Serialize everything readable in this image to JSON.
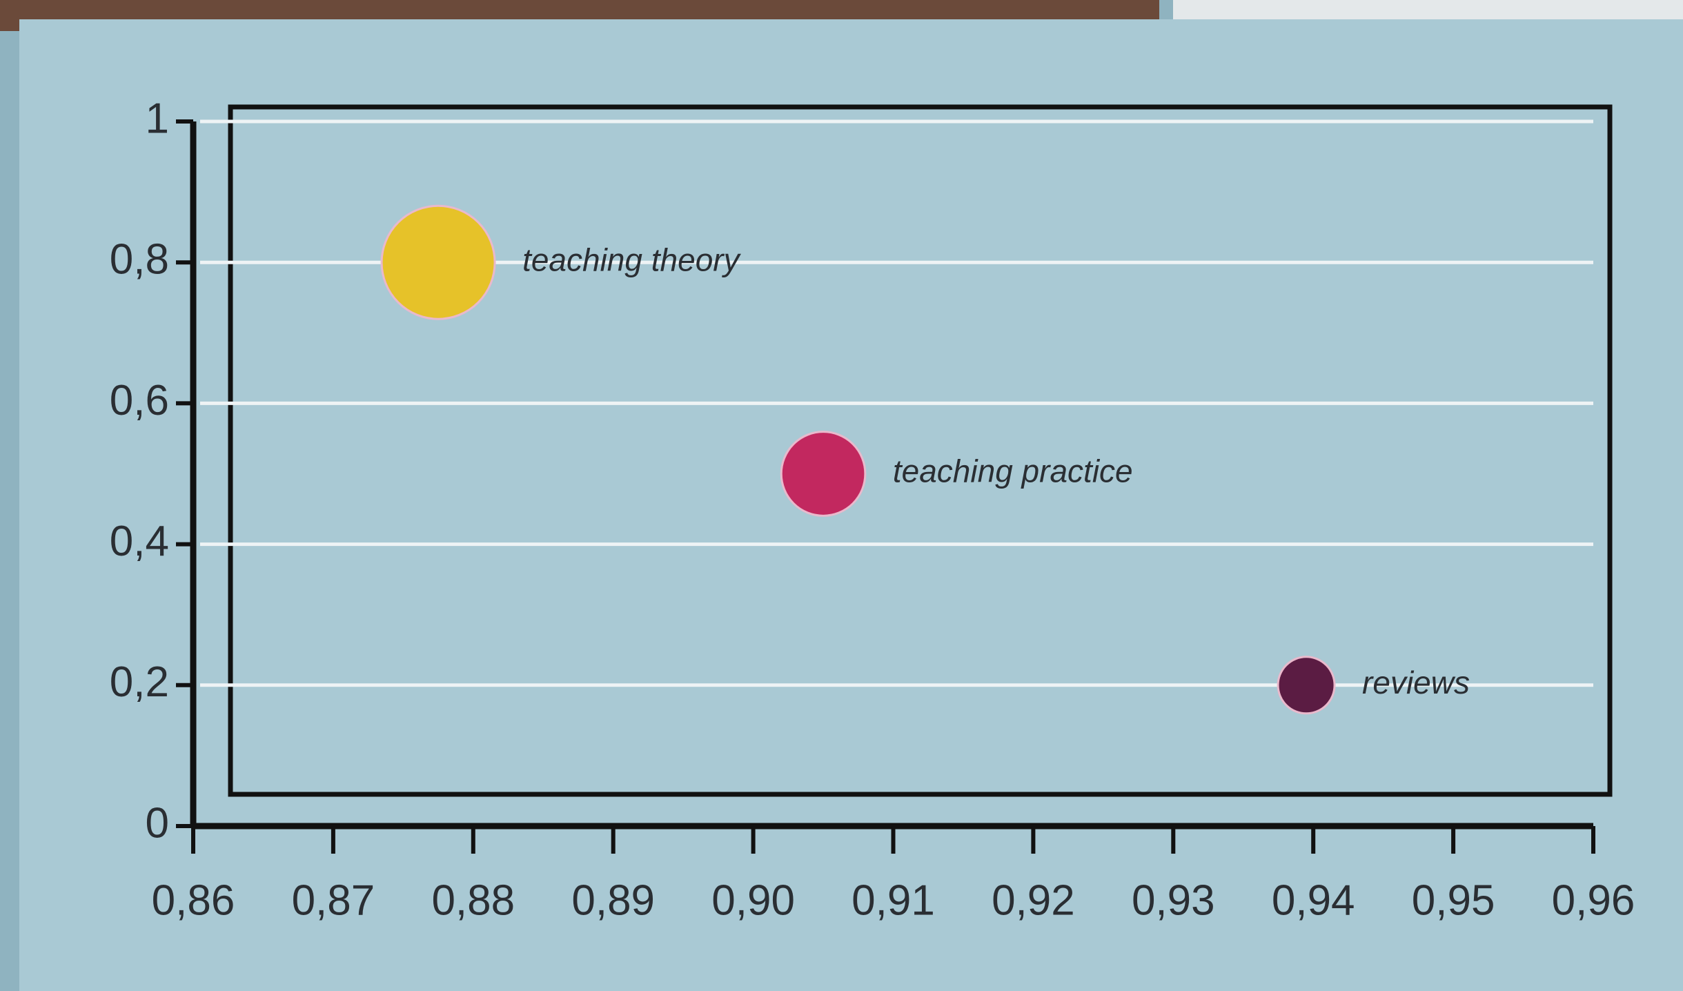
{
  "chart_data": {
    "type": "scatter",
    "xticks": [
      {
        "value": 0.86,
        "label": "0,86"
      },
      {
        "value": 0.87,
        "label": "0,87"
      },
      {
        "value": 0.88,
        "label": "0,88"
      },
      {
        "value": 0.89,
        "label": "0,89"
      },
      {
        "value": 0.9,
        "label": "0,90"
      },
      {
        "value": 0.91,
        "label": "0,91"
      },
      {
        "value": 0.92,
        "label": "0,92"
      },
      {
        "value": 0.93,
        "label": "0,93"
      },
      {
        "value": 0.94,
        "label": "0,94"
      },
      {
        "value": 0.95,
        "label": "0,95"
      },
      {
        "value": 0.96,
        "label": "0,96"
      }
    ],
    "yticks": [
      0,
      {
        "value": 0.2,
        "label": "0,2"
      },
      {
        "value": 0.4,
        "label": "0,4"
      },
      {
        "value": 0.6,
        "label": "0,6"
      },
      {
        "value": 0.8,
        "label": "0,8"
      },
      1
    ],
    "xlim": [
      0.86,
      0.96
    ],
    "ylim": [
      0,
      1
    ],
    "grid": true,
    "series": [
      {
        "name": "teaching theory",
        "color": "#e6c229",
        "x": [
          0.8775
        ],
        "values": [
          0.8
        ],
        "sizes": [
          4
        ]
      },
      {
        "name": "teaching practice",
        "color": "#c2285f",
        "x": [
          0.905
        ],
        "values": [
          0.5
        ],
        "sizes": [
          2.2
        ]
      },
      {
        "name": "reviews",
        "color": "#5b1c43",
        "x": [
          0.9395
        ],
        "values": [
          0.2
        ],
        "sizes": [
          1
        ]
      }
    ]
  }
}
